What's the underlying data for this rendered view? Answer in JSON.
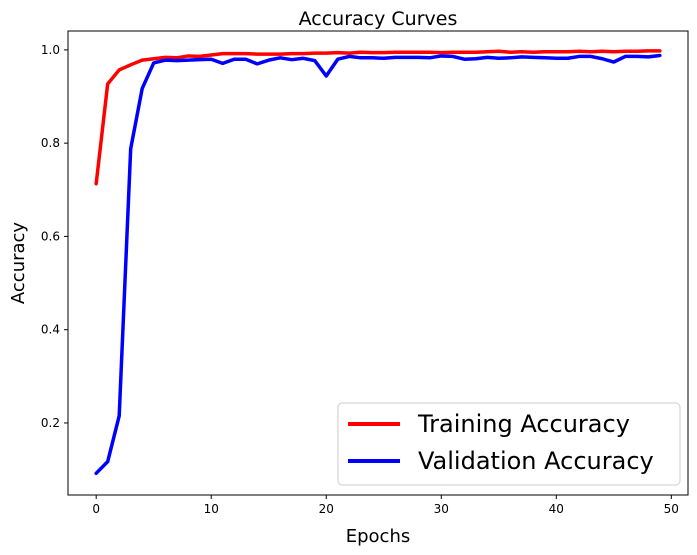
{
  "chart_data": {
    "type": "line",
    "title": "Accuracy Curves",
    "xlabel": "Epochs",
    "ylabel": "Accuracy",
    "xlim": [
      -2.45,
      51.45
    ],
    "ylim": [
      0.0455,
      1.0405
    ],
    "xticks": [
      0,
      10,
      20,
      30,
      40,
      50
    ],
    "yticks": [
      0.2,
      0.4,
      0.6,
      0.8,
      1.0
    ],
    "grid": false,
    "legend_position": "lower-right",
    "x": [
      0,
      1,
      2,
      3,
      4,
      5,
      6,
      7,
      8,
      9,
      10,
      11,
      12,
      13,
      14,
      15,
      16,
      17,
      18,
      19,
      20,
      21,
      22,
      23,
      24,
      25,
      26,
      27,
      28,
      29,
      30,
      31,
      32,
      33,
      34,
      35,
      36,
      37,
      38,
      39,
      40,
      41,
      42,
      43,
      44,
      45,
      46,
      47,
      48,
      49
    ],
    "series": [
      {
        "name": "Training Accuracy",
        "color": "#ff0000",
        "values": [
          0.713,
          0.927,
          0.957,
          0.968,
          0.978,
          0.981,
          0.984,
          0.983,
          0.987,
          0.986,
          0.989,
          0.992,
          0.992,
          0.992,
          0.991,
          0.991,
          0.991,
          0.992,
          0.992,
          0.993,
          0.993,
          0.994,
          0.993,
          0.995,
          0.994,
          0.994,
          0.995,
          0.995,
          0.995,
          0.995,
          0.994,
          0.995,
          0.995,
          0.995,
          0.996,
          0.997,
          0.995,
          0.996,
          0.995,
          0.996,
          0.996,
          0.996,
          0.997,
          0.996,
          0.997,
          0.996,
          0.997,
          0.997,
          0.998,
          0.998
        ]
      },
      {
        "name": "Validation Accuracy",
        "color": "#0000ff",
        "values": [
          0.092,
          0.117,
          0.215,
          0.788,
          0.917,
          0.972,
          0.978,
          0.977,
          0.978,
          0.979,
          0.98,
          0.971,
          0.98,
          0.98,
          0.97,
          0.978,
          0.983,
          0.979,
          0.982,
          0.977,
          0.944,
          0.98,
          0.986,
          0.983,
          0.983,
          0.982,
          0.984,
          0.984,
          0.984,
          0.983,
          0.987,
          0.986,
          0.98,
          0.981,
          0.984,
          0.982,
          0.983,
          0.985,
          0.984,
          0.983,
          0.982,
          0.982,
          0.986,
          0.986,
          0.981,
          0.974,
          0.986,
          0.986,
          0.985,
          0.988
        ]
      }
    ]
  }
}
